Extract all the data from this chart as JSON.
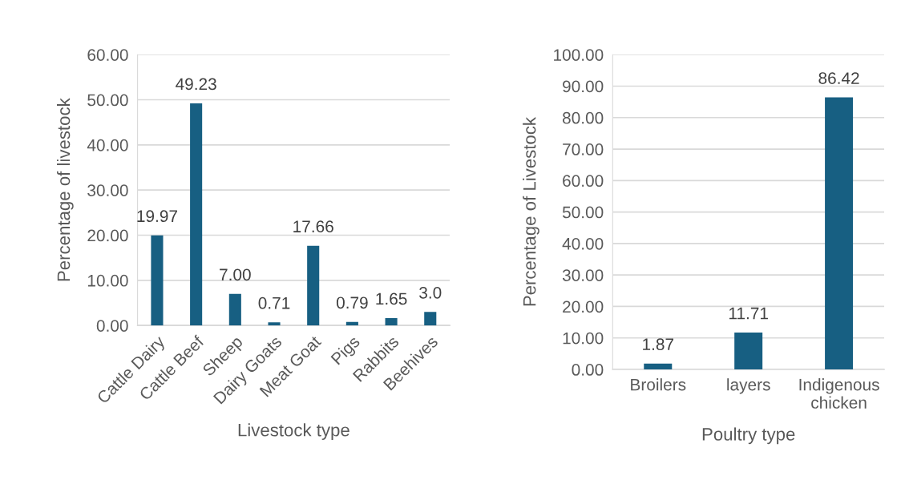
{
  "chart_data": [
    {
      "type": "bar",
      "categories": [
        "Cattle Dairy",
        "Cattle Beef",
        "Sheep",
        "Dairy Goats",
        "Meat Goat",
        "Pigs",
        "Rabbits",
        "Beehives"
      ],
      "values": [
        19.97,
        49.23,
        7.0,
        0.71,
        17.66,
        0.79,
        1.65,
        3.0
      ],
      "value_labels": [
        "19.97",
        "49.23",
        "7.00",
        "0.71",
        "17.66",
        "0.79",
        "1.65",
        "3.0"
      ],
      "color": "#175f82",
      "xlabel": "Livestock type",
      "ylabel": "Percentage of livestock",
      "ylim": [
        0,
        60
      ],
      "yticks": [
        {
          "value": 0,
          "label": "0.00"
        },
        {
          "value": 10,
          "label": "10.00"
        },
        {
          "value": 20,
          "label": "20.00"
        },
        {
          "value": 30,
          "label": "30.00"
        },
        {
          "value": 40,
          "label": "40.00"
        },
        {
          "value": 50,
          "label": "50.00"
        },
        {
          "value": 60,
          "label": "60.00"
        }
      ],
      "grid": "y"
    },
    {
      "type": "bar",
      "categories": [
        "Broilers",
        "layers",
        "Indigenous\nchicken"
      ],
      "values": [
        1.87,
        11.71,
        86.42
      ],
      "value_labels": [
        "1.87",
        "11.71",
        "86.42"
      ],
      "color": "#175f82",
      "xlabel": "Poultry type",
      "ylabel": "Percentage of Livestock",
      "ylim": [
        0,
        100
      ],
      "yticks": [
        {
          "value": 0,
          "label": "0.00"
        },
        {
          "value": 10,
          "label": "10.00"
        },
        {
          "value": 20,
          "label": "20.00"
        },
        {
          "value": 30,
          "label": "30.00"
        },
        {
          "value": 40,
          "label": "40.00"
        },
        {
          "value": 50,
          "label": "50.00"
        },
        {
          "value": 60,
          "label": "60.00"
        },
        {
          "value": 70,
          "label": "70.00"
        },
        {
          "value": 80,
          "label": "80.00"
        },
        {
          "value": 90,
          "label": "90.00"
        },
        {
          "value": 100,
          "label": "100.00"
        }
      ],
      "grid": "y"
    }
  ]
}
